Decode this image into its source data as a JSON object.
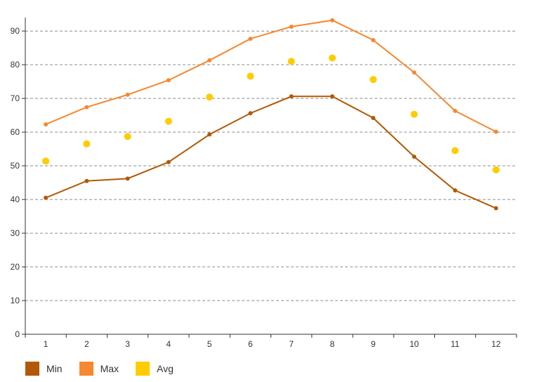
{
  "chart_data": {
    "type": "line",
    "title": "",
    "xlabel": "",
    "ylabel": "",
    "categories": [
      "1",
      "2",
      "3",
      "4",
      "5",
      "6",
      "7",
      "8",
      "9",
      "10",
      "11",
      "12"
    ],
    "ylim": [
      0,
      94
    ],
    "yticks": [
      "0",
      "10",
      "20",
      "30",
      "40",
      "50",
      "60",
      "70",
      "80",
      "90"
    ],
    "grid": "horizontal dashed",
    "legend_position": "bottom-left",
    "series": [
      {
        "name": "Min",
        "type": "line",
        "color": "#b35806",
        "values": [
          40.5,
          45.5,
          46.2,
          51.1,
          59.3,
          65.6,
          70.6,
          70.6,
          64.2,
          52.7,
          42.7,
          37.4
        ]
      },
      {
        "name": "Max",
        "type": "line",
        "color": "#f7882f",
        "values": [
          62.3,
          67.4,
          71.1,
          75.4,
          81.3,
          87.7,
          91.3,
          93.2,
          87.3,
          77.7,
          66.3,
          60.1
        ]
      },
      {
        "name": "Avg",
        "type": "scatter",
        "color": "#ffcc00",
        "values": [
          51.4,
          56.5,
          58.7,
          63.2,
          70.4,
          76.6,
          81.0,
          82.0,
          75.6,
          65.3,
          54.5,
          48.8
        ]
      }
    ]
  }
}
